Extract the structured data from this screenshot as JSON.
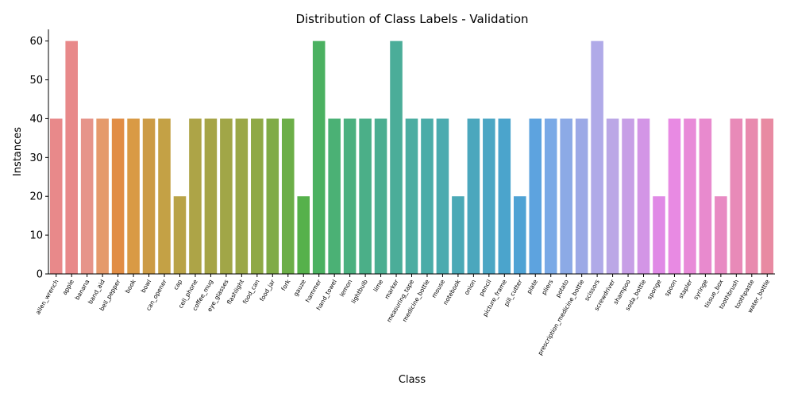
{
  "chart_data": {
    "type": "bar",
    "title": "Distribution of Class Labels - Validation",
    "xlabel": "Class",
    "ylabel": "Instances",
    "ylim": [
      0,
      63
    ],
    "yticks": [
      0,
      10,
      20,
      30,
      40,
      50,
      60
    ],
    "grid": false,
    "categories": [
      "allen_wrench",
      "apple",
      "banana",
      "band_aid",
      "bell_pepper",
      "book",
      "bowl",
      "can_opener",
      "cap",
      "cell_phone",
      "coffee_mug",
      "eye_glasses",
      "flashlight",
      "food_can",
      "food_jar",
      "fork",
      "gauze",
      "hammer",
      "hand_towel",
      "lemon",
      "lightbulb",
      "lime",
      "marker",
      "measuring_tape",
      "medicine_bottle",
      "mouse",
      "notebook",
      "onion",
      "pencil",
      "picture_frame",
      "pill_cutter",
      "plate",
      "pliers",
      "potato",
      "prescription_medicine_bottle",
      "scissors",
      "screwdriver",
      "shampoo",
      "soda_bottle",
      "sponge",
      "spoon",
      "stapler",
      "syringe",
      "tissue_box",
      "toothbrush",
      "toothpaste",
      "water_bottle"
    ],
    "values": [
      40,
      60,
      40,
      40,
      40,
      40,
      40,
      40,
      20,
      40,
      40,
      40,
      40,
      40,
      40,
      40,
      20,
      60,
      40,
      40,
      40,
      40,
      60,
      40,
      40,
      40,
      20,
      40,
      40,
      40,
      20,
      40,
      40,
      40,
      40,
      60,
      40,
      40,
      40,
      20,
      40,
      40,
      40,
      20,
      40,
      40,
      40
    ],
    "colors": [
      "#e8898a",
      "#e8898a",
      "#e6948a",
      "#e59a6c",
      "#e18d45",
      "#d99a45",
      "#cc9b45",
      "#c4a145",
      "#b9a347",
      "#ada447",
      "#a6a447",
      "#a1a647",
      "#9aa747",
      "#8fa946",
      "#80ab47",
      "#6cae48",
      "#56b14b",
      "#4bb161",
      "#4bb175",
      "#4bb07f",
      "#4baf88",
      "#4bae91",
      "#4bad99",
      "#4bada1",
      "#4baca8",
      "#4babaf",
      "#4ba9b6",
      "#4ba7bd",
      "#4ba6c4",
      "#4ba4cc",
      "#4ea2d4",
      "#5da3df",
      "#79a9e6",
      "#8caae6",
      "#9ca9e6",
      "#b0aae8",
      "#bba7e6",
      "#c79fe6",
      "#d395e6",
      "#e08ae6",
      "#e88ae3",
      "#e88ad8",
      "#e88ace",
      "#e88ac3",
      "#e88ab8",
      "#e88aae",
      "#e88aa2"
    ]
  }
}
